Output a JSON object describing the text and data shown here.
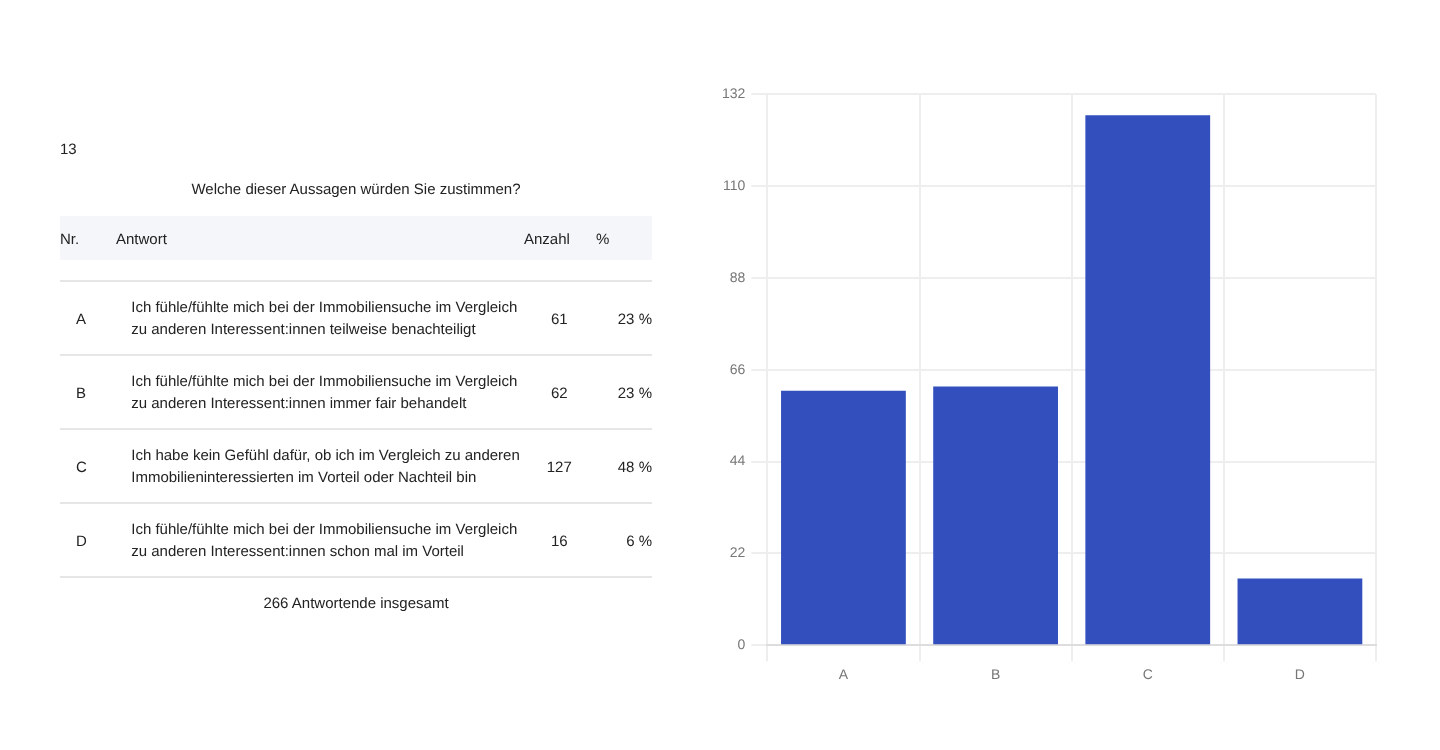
{
  "chart_data": {
    "type": "bar",
    "title": "Welche dieser Aussagen würden Sie zustimmen?",
    "categories": [
      "A",
      "B",
      "C",
      "D"
    ],
    "values": [
      61,
      62,
      127,
      16
    ],
    "color": "#324fbd",
    "ylim": [
      0,
      132
    ],
    "yticks": [
      0,
      22,
      44,
      66,
      88,
      110,
      132
    ],
    "grid": true,
    "annotations": [
      "13",
      "Nr.",
      "Antwort",
      "Anzahl",
      "%",
      "Ich fühle/fühlte mich bei der Immobiliensuche im Vergleich zu anderen Interessent:innen teilweise benachteiligt",
      "61",
      "23 %",
      "Ich fühle/fühlte mich bei der Immobiliensuche im Vergleich zu anderen Interessent:innen immer fair behandelt",
      "62",
      "23 %",
      "Ich habe kein Gefühl dafür, ob ich im Vergleich zu anderen Immobilieninteressierten im Vorteil oder Nachteil bin",
      "127",
      "48 %",
      "Ich fühle/fühlte mich bei der Immobiliensuche im Vergleich zu anderen Interessent:innen schon mal im Vorteil",
      "16",
      "6 %",
      "266 Antwortende insgesamt"
    ]
  }
}
